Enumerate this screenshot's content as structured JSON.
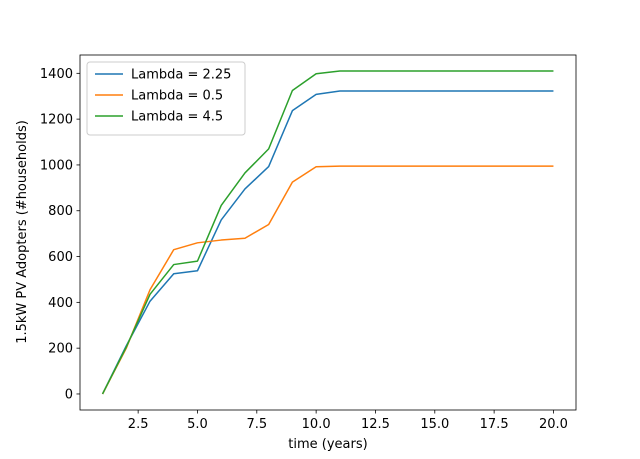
{
  "chart_data": {
    "type": "line",
    "title": "",
    "xlabel": "time (years)",
    "ylabel": "1.5kW PV Adopters (#households)",
    "xlim": [
      0.05,
      20.95
    ],
    "ylim": [
      -70,
      1480
    ],
    "x": [
      1,
      2,
      3,
      4,
      5,
      6,
      7,
      8,
      9,
      10,
      11,
      12,
      13,
      14,
      15,
      16,
      17,
      18,
      19,
      20
    ],
    "xticks": [
      2.5,
      5.0,
      7.5,
      10.0,
      12.5,
      15.0,
      17.5,
      20.0
    ],
    "xtick_labels": [
      "2.5",
      "5.0",
      "7.5",
      "10.0",
      "12.5",
      "15.0",
      "17.5",
      "20.0"
    ],
    "yticks": [
      0,
      200,
      400,
      600,
      800,
      1000,
      1200,
      1400
    ],
    "ytick_labels": [
      "0",
      "200",
      "400",
      "600",
      "800",
      "1000",
      "1200",
      "1400"
    ],
    "grid": false,
    "legend_position": "top-left",
    "series": [
      {
        "name": "Lambda = 2.25",
        "color": "#1f77b4",
        "values": [
          0,
          210,
          405,
          525,
          538,
          760,
          895,
          993,
          1237,
          1308,
          1323,
          1323,
          1323,
          1323,
          1323,
          1323,
          1323,
          1323,
          1323,
          1323
        ]
      },
      {
        "name": "Lambda = 0.5",
        "color": "#ff7f0e",
        "values": [
          0,
          200,
          455,
          630,
          660,
          672,
          680,
          740,
          925,
          992,
          995,
          995,
          995,
          995,
          995,
          995,
          995,
          995,
          995,
          995
        ]
      },
      {
        "name": "Lambda = 4.5",
        "color": "#2ca02c",
        "values": [
          0,
          205,
          435,
          565,
          580,
          823,
          965,
          1070,
          1325,
          1398,
          1410,
          1410,
          1410,
          1410,
          1410,
          1410,
          1410,
          1410,
          1410,
          1410
        ]
      }
    ]
  }
}
